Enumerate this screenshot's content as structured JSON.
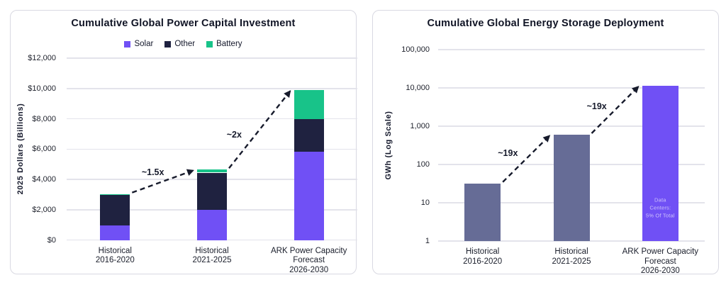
{
  "colors": {
    "card_border": "#D9D9E2",
    "gridline": "#E3E3EB",
    "arrow": "#171B2C",
    "solar_purple": "#7050F5",
    "other_navy": "#1F2240",
    "battery_green": "#18C389",
    "storage_slate": "#666C96",
    "text_dark": "#14182B"
  },
  "chart_data": [
    {
      "type": "bar",
      "variant": "stacked",
      "scale": "linear",
      "title": "Cumulative Global Power Capital Investment",
      "ylabel": "2025 Dollars (Billions)",
      "ylim": [
        0,
        12000
      ],
      "grid": true,
      "legend_position": "top-center",
      "y_ticks": [
        {
          "label": "$12,000",
          "value": 12000
        },
        {
          "label": "$10,000",
          "value": 10000
        },
        {
          "label": "$8,000",
          "value": 8000
        },
        {
          "label": "$6,000",
          "value": 6000
        },
        {
          "label": "$4,000",
          "value": 4000
        },
        {
          "label": "$2,000",
          "value": 2000
        },
        {
          "label": "$0",
          "value": 0
        }
      ],
      "categories": [
        "Historical\n2016-2020",
        "Historical\n2021-2025",
        "ARK Power Capacity\nForecast\n2026-2030"
      ],
      "series": [
        {
          "name": "Solar",
          "color": "#7050F5",
          "values": [
            950,
            2000,
            5850
          ]
        },
        {
          "name": "Other",
          "color": "#1F2240",
          "values": [
            2050,
            2450,
            2150
          ]
        },
        {
          "name": "Battery",
          "color": "#18C389",
          "values": [
            40,
            200,
            1900
          ]
        }
      ],
      "totals": [
        3040,
        4650,
        9900
      ],
      "annotations": [
        "~1.5x",
        "~2x"
      ]
    },
    {
      "type": "bar",
      "variant": "simple",
      "scale": "log",
      "title": "Cumulative Global Energy Storage Deployment",
      "ylabel": "GWh (Log Scale)",
      "ylim": [
        1,
        100000
      ],
      "grid": true,
      "y_ticks": [
        {
          "label": "100,000",
          "value": 100000
        },
        {
          "label": "10,000",
          "value": 10000
        },
        {
          "label": "1,000",
          "value": 1000
        },
        {
          "label": "100",
          "value": 100
        },
        {
          "label": "10",
          "value": 10
        },
        {
          "label": "1",
          "value": 1
        }
      ],
      "categories": [
        "Historical\n2016-2020",
        "Historical\n2021-2025",
        "ARK Power Capacity\nForecast\n2026-2030"
      ],
      "values": [
        32,
        600,
        11500
      ],
      "bar_colors": [
        "#666C96",
        "#666C96",
        "#7050F5"
      ],
      "annotations": [
        "~19x",
        "~19x"
      ],
      "bar_label": {
        "bar_index": 2,
        "text": "Data\nCenters:\n5% Of Total",
        "color": "#CDC2FB"
      }
    }
  ]
}
